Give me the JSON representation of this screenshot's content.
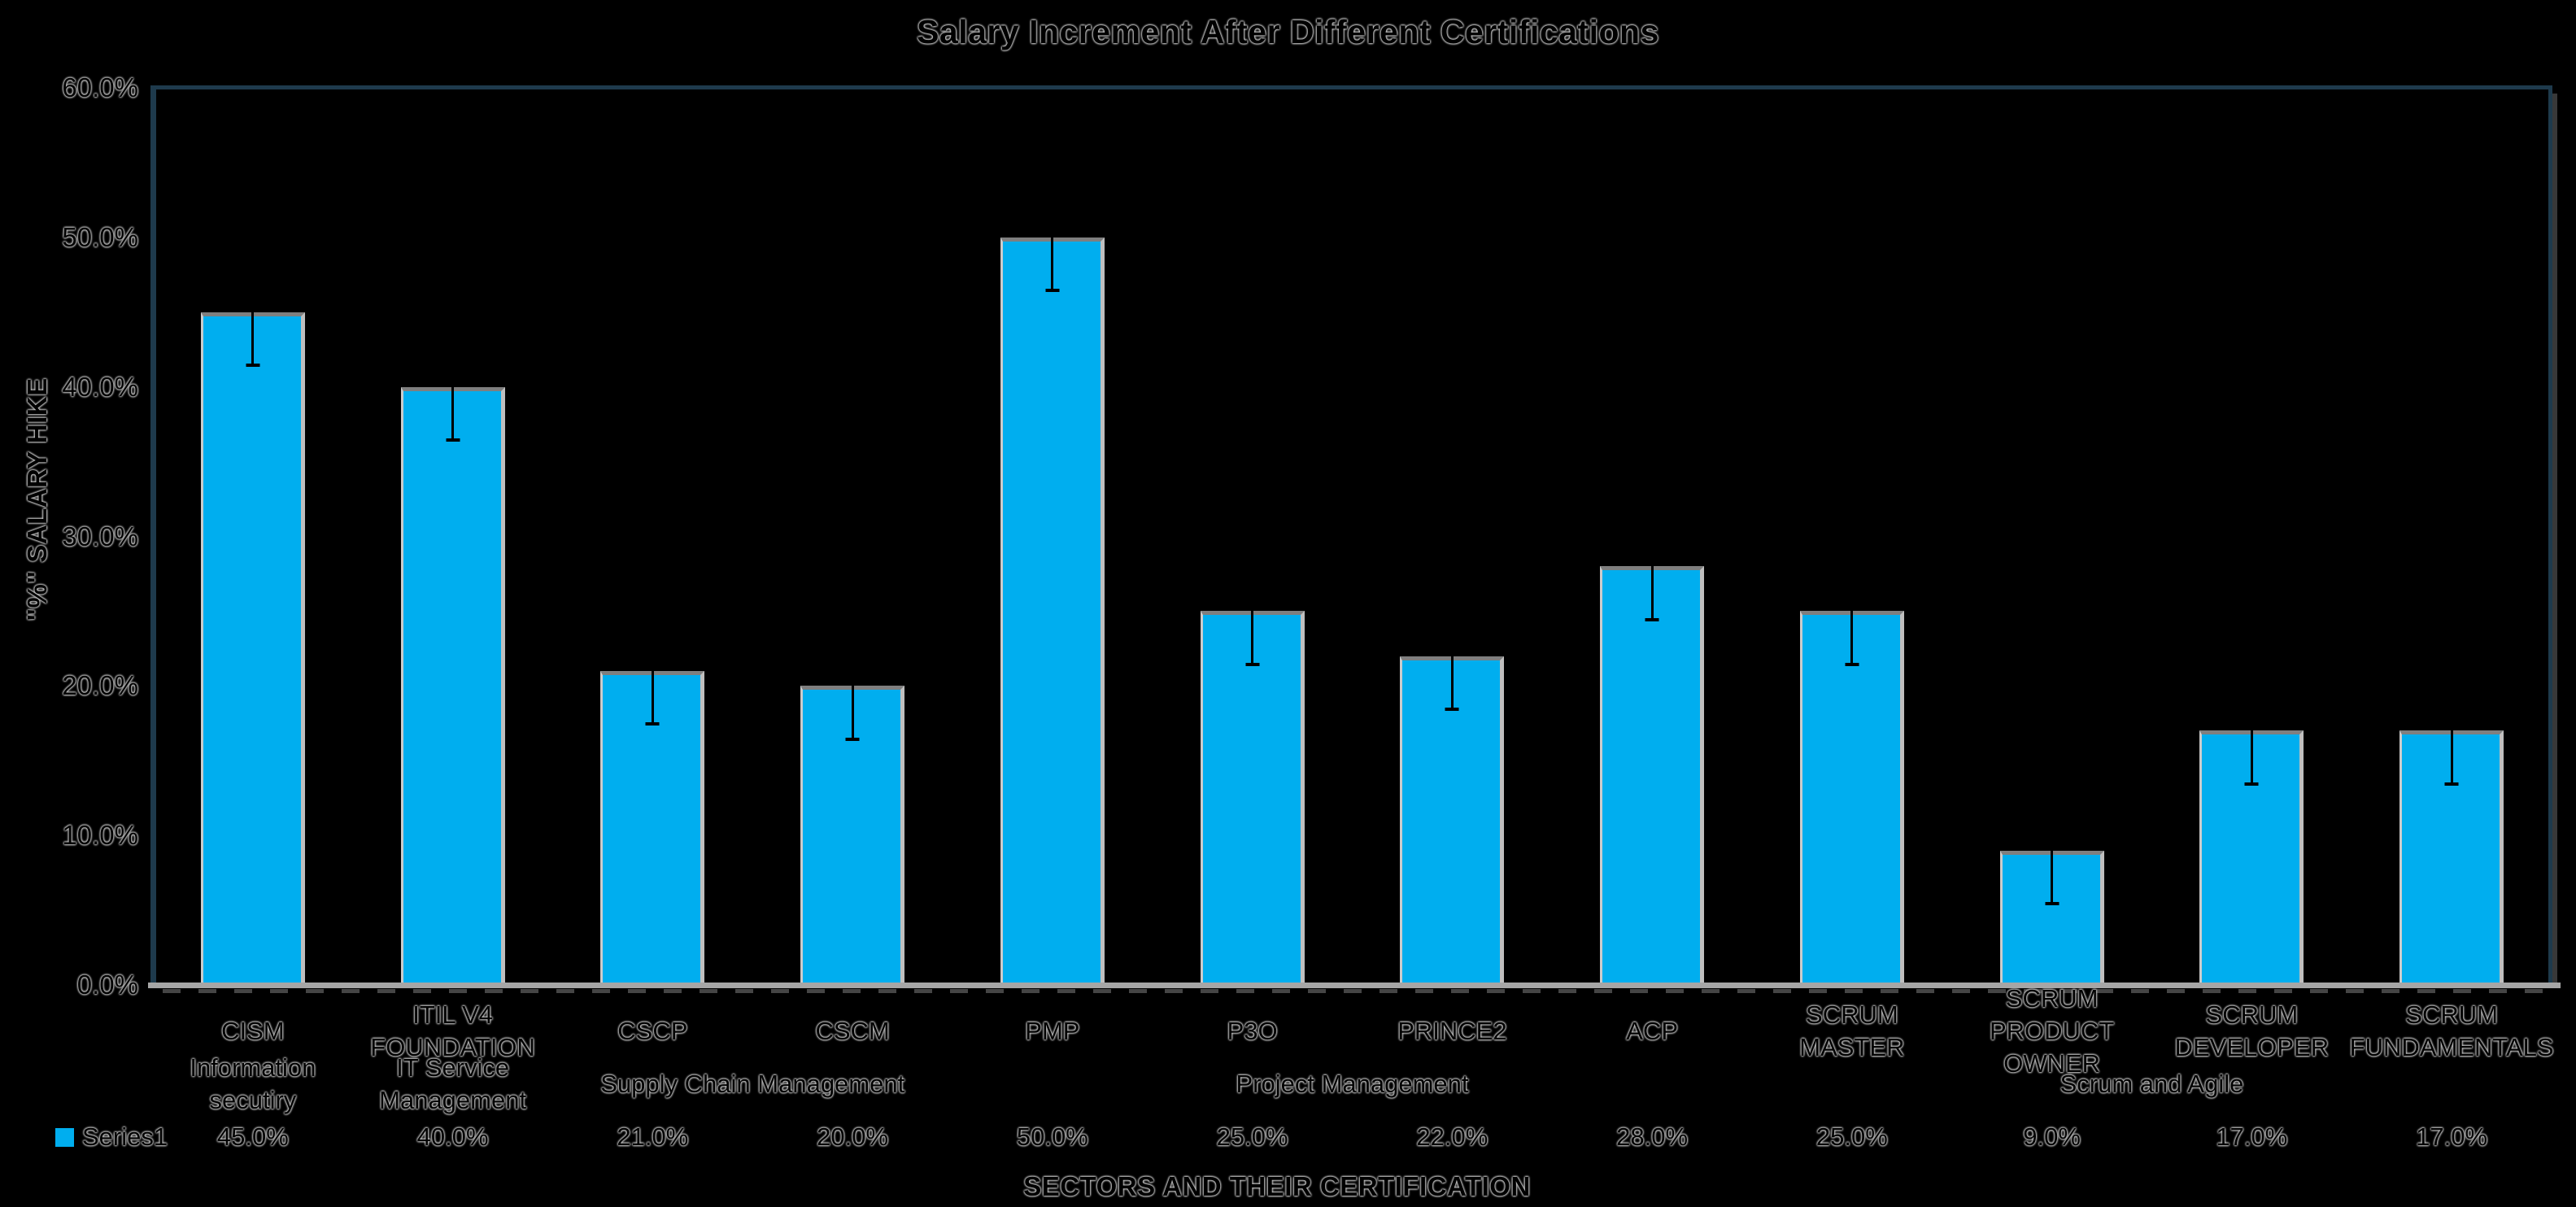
{
  "title": "Salary Increment After Different Certifications",
  "y_axis": {
    "title": "\"%\" SALARY HIKE",
    "tick_labels": [
      "0.0%",
      "10.0%",
      "20.0%",
      "30.0%",
      "40.0%",
      "50.0%",
      "60.0%"
    ],
    "tick_values": [
      0,
      10,
      20,
      30,
      40,
      50,
      60
    ]
  },
  "x_axis": {
    "title": "SECTORS AND THEIR CERTIFICATION"
  },
  "legend": {
    "label": "Series1",
    "swatch_color": "#00AEEF"
  },
  "chart_data": {
    "type": "bar",
    "title": "Salary Increment After Different Certifications",
    "xlabel": "SECTORS AND THEIR CERTIFICATION",
    "ylabel": "\"%\" SALARY HIKE",
    "ylim": [
      0,
      60
    ],
    "grid": false,
    "legend_position": "bottom-left",
    "bar_color": "#00AEEF",
    "error_bar_value": 3.55,
    "categories": [
      "CISM",
      "ITIL V4 FOUNDATION",
      "CSCP",
      "CSCM",
      "PMP",
      "P3O",
      "PRINCE2",
      "ACP",
      "SCRUM MASTER",
      "SCRUM PRODUCT OWNER",
      "SCRUM DEVELOPER",
      "SCRUM FUNDAMENTALS"
    ],
    "category_display_lines": [
      "CISM",
      "ITIL V4\nFOUNDATION",
      "CSCP",
      "CSCM",
      "PMP",
      "P3O",
      "PRINCE2",
      "ACP",
      "SCRUM MASTER",
      "SCRUM PRODUCT\nOWNER",
      "SCRUM\nDEVELOPER",
      "SCRUM\nFUNDAMENTALS"
    ],
    "series": [
      {
        "name": "Series1",
        "values": [
          45,
          40,
          21,
          20,
          50,
          25,
          22,
          28,
          25,
          9,
          17,
          17
        ],
        "value_labels": [
          "45.0%",
          "40.0%",
          "21.0%",
          "20.0%",
          "50.0%",
          "25.0%",
          "22.0%",
          "28.0%",
          "25.0%",
          "9.0%",
          "17.0%",
          "17.0%"
        ]
      }
    ],
    "category_groups": [
      {
        "label": "Information secutiry",
        "span": [
          0,
          0
        ]
      },
      {
        "label": "IT Service\nManagement",
        "span": [
          1,
          1
        ]
      },
      {
        "label": "Supply Chain Management",
        "span": [
          2,
          3
        ]
      },
      {
        "label": "Project Management",
        "span": [
          4,
          7
        ]
      },
      {
        "label": "Scrum and Agile",
        "span": [
          8,
          11
        ]
      }
    ]
  }
}
